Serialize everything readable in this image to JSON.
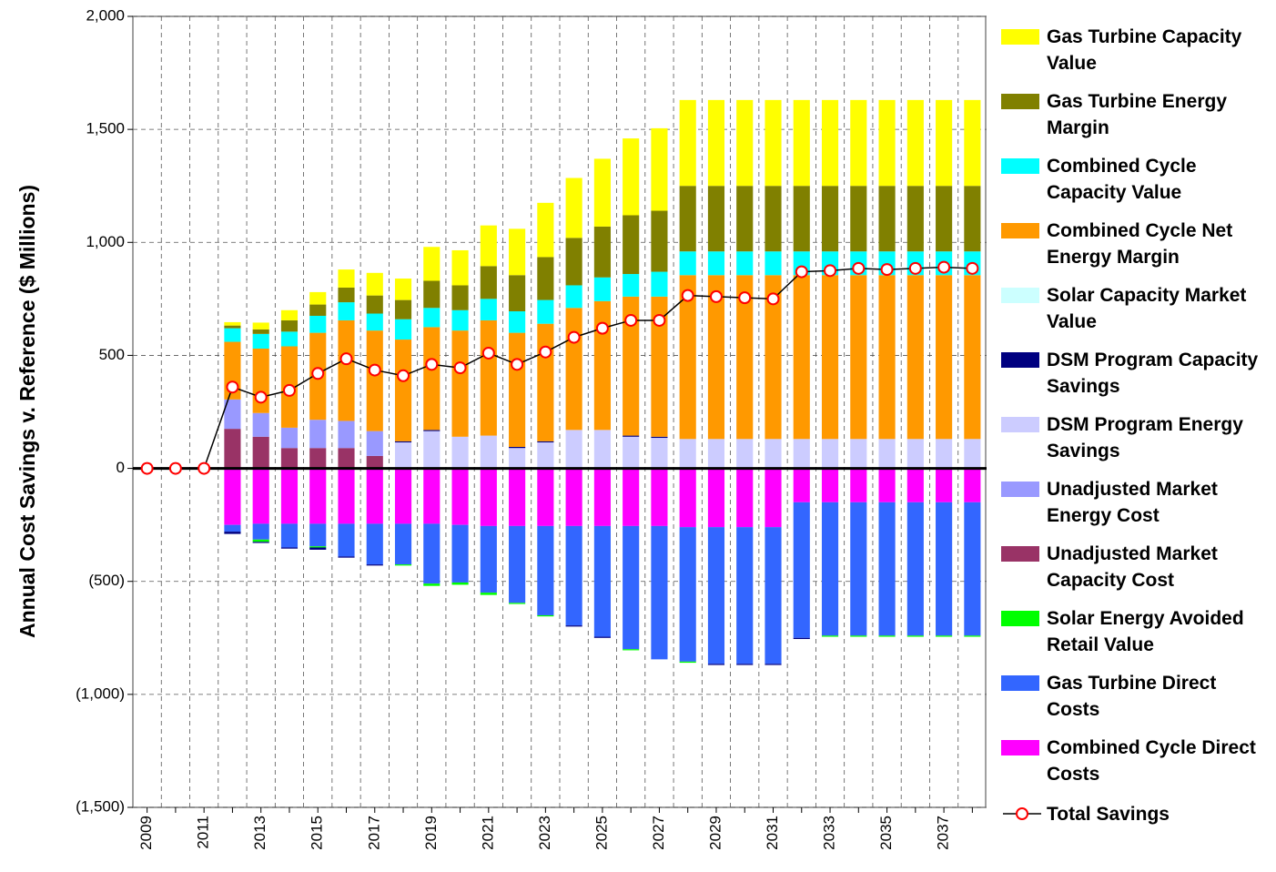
{
  "chart_data": {
    "type": "bar",
    "y_label": "Annual Cost Savings v. Reference ($ Millions)",
    "categories": [
      "2009",
      null,
      "2011",
      null,
      "2013",
      null,
      "2015",
      null,
      "2017",
      null,
      "2019",
      null,
      "2021",
      null,
      "2023",
      null,
      "2025",
      null,
      "2027",
      null,
      "2029",
      null,
      "2031",
      null,
      "2033",
      null,
      "2035",
      null,
      "2037",
      null
    ],
    "ylim": [
      -1500,
      2000
    ],
    "yticks": [
      {
        "value": -1500,
        "label": "(1,500)"
      },
      {
        "value": -1000,
        "label": "(1,000)"
      },
      {
        "value": -500,
        "label": "(500)"
      },
      0,
      500,
      {
        "value": 1000,
        "label": "1,000"
      },
      {
        "value": 1500,
        "label": "1,500"
      },
      {
        "value": 2000,
        "label": "2,000"
      }
    ],
    "grid": true,
    "series": [
      {
        "name": "Gas Turbine Capacity Value",
        "color": "#ffff00",
        "values": [
          0,
          0,
          0,
          15,
          30,
          45,
          55,
          80,
          100,
          95,
          150,
          155,
          180,
          205,
          240,
          265,
          300,
          340,
          365,
          380,
          380,
          380,
          380,
          380,
          380,
          380,
          380,
          380,
          380,
          380
        ]
      },
      {
        "name": "Gas Turbine Energy Margin",
        "color": "#808000",
        "values": [
          0,
          0,
          0,
          12,
          20,
          50,
          50,
          65,
          80,
          85,
          120,
          110,
          145,
          160,
          190,
          210,
          225,
          260,
          270,
          290,
          290,
          290,
          290,
          290,
          290,
          290,
          290,
          290,
          290,
          290
        ]
      },
      {
        "name": "Combined Cycle Capacity Value",
        "color": "#00ffff",
        "values": [
          0,
          0,
          0,
          60,
          65,
          65,
          75,
          80,
          75,
          90,
          85,
          90,
          95,
          95,
          105,
          100,
          105,
          100,
          110,
          105,
          105,
          105,
          105,
          105,
          105,
          105,
          105,
          105,
          105,
          105
        ]
      },
      {
        "name": "Combined Cycle Net Energy Margin",
        "color": "#ff9900",
        "values": [
          0,
          0,
          0,
          255,
          285,
          360,
          385,
          445,
          445,
          450,
          455,
          470,
          510,
          505,
          520,
          540,
          570,
          615,
          620,
          725,
          725,
          725,
          725,
          725,
          725,
          725,
          725,
          725,
          725,
          725
        ]
      },
      {
        "name": "Solar Capacity Market Value",
        "color": "#ccffff",
        "values": [
          0,
          0,
          0,
          0,
          0,
          0,
          0,
          0,
          0,
          0,
          0,
          0,
          0,
          0,
          0,
          0,
          0,
          0,
          0,
          0,
          0,
          0,
          0,
          0,
          0,
          0,
          0,
          0,
          0,
          0
        ]
      },
      {
        "name": "DSM Program Capacity Savings",
        "color": "#000080",
        "values": [
          0,
          0,
          0,
          -10,
          -5,
          -5,
          -10,
          -5,
          -5,
          5,
          5,
          0,
          0,
          5,
          5,
          -5,
          -5,
          5,
          5,
          0,
          -5,
          -5,
          -5,
          -5,
          0,
          0,
          0,
          0,
          0,
          0
        ]
      },
      {
        "name": "DSM Program Energy Savings",
        "color": "#ccccff",
        "values": [
          0,
          0,
          0,
          0,
          0,
          0,
          0,
          0,
          0,
          115,
          165,
          140,
          145,
          90,
          115,
          170,
          170,
          140,
          135,
          130,
          130,
          130,
          130,
          130,
          130,
          130,
          130,
          130,
          130,
          130
        ]
      },
      {
        "name": "Unadjusted Market Energy Cost",
        "color": "#9999ff",
        "values": [
          0,
          0,
          0,
          130,
          105,
          90,
          125,
          120,
          110,
          0,
          0,
          0,
          0,
          0,
          0,
          0,
          0,
          0,
          0,
          0,
          0,
          0,
          0,
          0,
          0,
          0,
          0,
          0,
          0,
          0
        ]
      },
      {
        "name": "Unadjusted Market Capacity Cost",
        "color": "#993366",
        "values": [
          0,
          0,
          0,
          175,
          140,
          90,
          90,
          90,
          55,
          0,
          0,
          0,
          0,
          0,
          0,
          0,
          0,
          0,
          0,
          0,
          0,
          0,
          0,
          0,
          0,
          0,
          0,
          0,
          0,
          0
        ]
      },
      {
        "name": "Solar Energy Avoided Retail Value",
        "color": "#00ff00",
        "values": [
          0,
          0,
          0,
          0,
          -10,
          0,
          -5,
          0,
          0,
          -5,
          -10,
          -10,
          -10,
          -5,
          -5,
          0,
          0,
          -5,
          0,
          -5,
          0,
          0,
          0,
          0,
          -5,
          -5,
          -5,
          -5,
          -5,
          -5
        ]
      },
      {
        "name": "Gas Turbine Direct Costs",
        "color": "#3366ff",
        "values": [
          0,
          0,
          0,
          -30,
          -70,
          -105,
          -100,
          -145,
          -180,
          -180,
          -265,
          -255,
          -295,
          -340,
          -395,
          -440,
          -490,
          -545,
          -590,
          -595,
          -605,
          -605,
          -605,
          -600,
          -590,
          -590,
          -590,
          -590,
          -590,
          -590
        ]
      },
      {
        "name": "Combined Cycle Direct Costs",
        "color": "#ff00ff",
        "values": [
          0,
          0,
          0,
          -250,
          -245,
          -245,
          -245,
          -245,
          -245,
          -245,
          -245,
          -250,
          -255,
          -255,
          -255,
          -255,
          -255,
          -255,
          -255,
          -260,
          -260,
          -260,
          -260,
          -150,
          -150,
          -150,
          -150,
          -150,
          -150,
          -150
        ]
      },
      {
        "name": "Total Savings",
        "type": "line",
        "color": "#ff0000",
        "line_color": "#000000",
        "values": [
          0,
          0,
          0,
          360,
          315,
          345,
          420,
          485,
          435,
          410,
          460,
          445,
          510,
          460,
          515,
          580,
          620,
          655,
          655,
          765,
          760,
          755,
          750,
          870,
          875,
          885,
          880,
          885,
          890,
          885
        ]
      }
    ]
  }
}
